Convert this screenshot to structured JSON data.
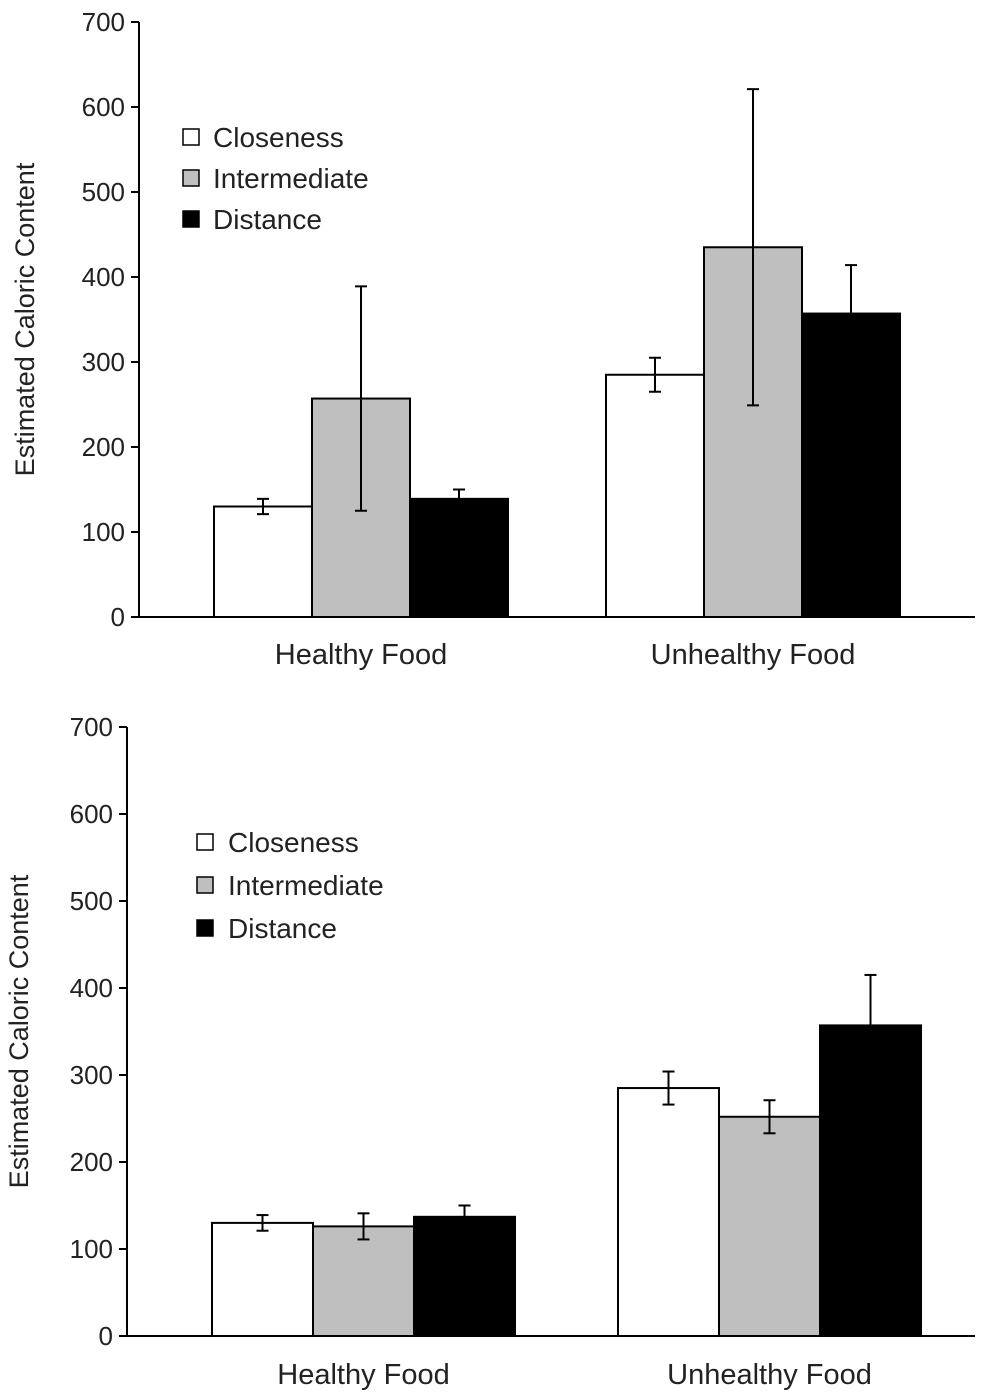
{
  "chart_data": [
    {
      "type": "bar",
      "title": "",
      "xlabel": "",
      "ylabel": "Estimated Caloric Content",
      "ylim": [
        0,
        700
      ],
      "yticks": [
        0,
        100,
        200,
        300,
        400,
        500,
        600,
        700
      ],
      "categories": [
        "Healthy Food",
        "Unhealthy Food"
      ],
      "grid": false,
      "legend_position": "top-left",
      "series": [
        {
          "name": "Closeness",
          "color": "#ffffff",
          "values": [
            130,
            285
          ],
          "error": [
            9,
            20
          ]
        },
        {
          "name": "Intermediate",
          "color": "#bfbfbf",
          "values": [
            257,
            435
          ],
          "error": [
            132,
            186
          ]
        },
        {
          "name": "Distance",
          "color": "#000000",
          "values": [
            139,
            357
          ],
          "error": [
            11,
            57
          ]
        }
      ]
    },
    {
      "type": "bar",
      "title": "",
      "xlabel": "",
      "ylabel": "Estimated Caloric Content",
      "ylim": [
        0,
        700
      ],
      "yticks": [
        0,
        100,
        200,
        300,
        400,
        500,
        600,
        700
      ],
      "categories": [
        "Healthy Food",
        "Unhealthy Food"
      ],
      "grid": false,
      "legend_position": "top-left",
      "series": [
        {
          "name": "Closeness",
          "color": "#ffffff",
          "values": [
            130,
            285
          ],
          "error": [
            9,
            19
          ]
        },
        {
          "name": "Intermediate",
          "color": "#bfbfbf",
          "values": [
            126,
            252
          ],
          "error": [
            15,
            19
          ]
        },
        {
          "name": "Distance",
          "color": "#000000",
          "values": [
            137,
            357
          ],
          "error": [
            13,
            58
          ]
        }
      ]
    }
  ]
}
